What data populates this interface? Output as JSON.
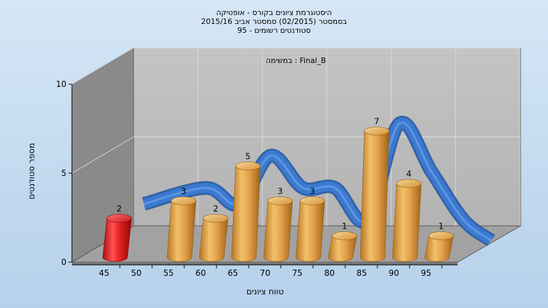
{
  "chart_data": {
    "type": "bar",
    "title_lines": [
      "היסטוגרמת ציונים בקורס - אופטיקה",
      "בסמסטר  (02/2015)  סמסטר אביב 2015/16",
      "סטודנטים רשומים - 95"
    ],
    "inner_label": "במשימה : Final_B",
    "xlabel": "טווח ציונים",
    "ylabel": "מספר סטודנטים",
    "x_ticks": [
      "45",
      "50",
      "55",
      "60",
      "65",
      "70",
      "75",
      "80",
      "85",
      "90",
      "95"
    ],
    "y_ticks": [
      "0",
      "5",
      "10"
    ],
    "ylim": [
      0,
      10
    ],
    "categories": [
      "45",
      "55",
      "60",
      "65",
      "70",
      "75",
      "80",
      "85",
      "90",
      "95"
    ],
    "values": [
      2,
      3,
      2,
      5,
      3,
      3,
      1,
      7,
      4,
      1
    ],
    "value_labels": [
      "2",
      "3",
      "2",
      "5",
      "3",
      "3",
      "1",
      "7",
      "4",
      "1"
    ],
    "colors": {
      "failing_bar": "#e41e1e",
      "passing_bar": "#e8a94a",
      "curve": "#3b7ad0",
      "back_wall": "#b9b9b9",
      "side_wall": "#8a8a8a",
      "floor": "#9d9d9d"
    }
  }
}
